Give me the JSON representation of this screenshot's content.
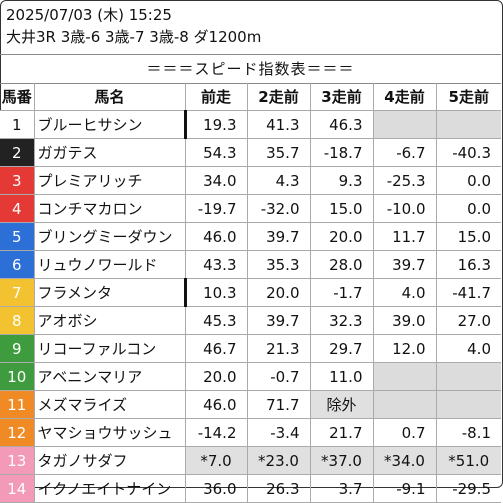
{
  "header": {
    "date_line": "2025/07/03 (木) 15:25",
    "race_line": "大井3R 3歳-6 3歳-7 3歳-8 ダ1200m"
  },
  "title": "＝＝＝スピード指数表＝＝＝",
  "columns": [
    "馬番",
    "馬名",
    "前走",
    "2走前",
    "3走前",
    "4走前",
    "5走前"
  ],
  "colors": {
    "gate1": "#ffffff",
    "gate2": "#222222",
    "gate3": "#e53935",
    "gate4": "#2c6fd6",
    "gate5": "#f2c230",
    "gate6": "#3e9b3e",
    "gate7": "#f08a24",
    "gate8": "#f29ab8"
  },
  "rows": [
    {
      "num": "1",
      "name": "ブルーヒサシン",
      "v": [
        "19.3",
        "41.3",
        "46.3",
        "",
        ""
      ],
      "bg": "#ffffff",
      "fg": "#111111",
      "mark": true
    },
    {
      "num": "2",
      "name": "ガガテス",
      "v": [
        "54.3",
        "35.7",
        "-18.7",
        "-6.7",
        "-40.3"
      ],
      "bg": "#222222",
      "fg": "#ffffff",
      "mark": false
    },
    {
      "num": "3",
      "name": "プレミアリッチ",
      "v": [
        "34.0",
        "4.3",
        "9.3",
        "-25.3",
        "0.0"
      ],
      "bg": "#e53935",
      "fg": "#ffffff",
      "mark": false
    },
    {
      "num": "4",
      "name": "コンチマカロン",
      "v": [
        "-19.7",
        "-32.0",
        "15.0",
        "-10.0",
        "0.0"
      ],
      "bg": "#e53935",
      "fg": "#ffffff",
      "mark": false
    },
    {
      "num": "5",
      "name": "ブリングミーダウン",
      "v": [
        "46.0",
        "39.7",
        "20.0",
        "11.7",
        "15.0"
      ],
      "bg": "#2c6fd6",
      "fg": "#ffffff",
      "mark": false
    },
    {
      "num": "6",
      "name": "リュウノワールド",
      "v": [
        "43.3",
        "35.3",
        "28.0",
        "39.7",
        "16.3"
      ],
      "bg": "#2c6fd6",
      "fg": "#ffffff",
      "mark": false
    },
    {
      "num": "7",
      "name": "フラメンタ",
      "v": [
        "10.3",
        "20.0",
        "-1.7",
        "4.0",
        "-41.7"
      ],
      "bg": "#f2c230",
      "fg": "#ffffff",
      "mark": true
    },
    {
      "num": "8",
      "name": "アオボシ",
      "v": [
        "45.3",
        "39.7",
        "32.3",
        "39.0",
        "27.0"
      ],
      "bg": "#f2c230",
      "fg": "#ffffff",
      "mark": false
    },
    {
      "num": "9",
      "name": "リコーファルコン",
      "v": [
        "46.7",
        "21.3",
        "29.7",
        "12.0",
        "4.0"
      ],
      "bg": "#3e9b3e",
      "fg": "#ffffff",
      "mark": false
    },
    {
      "num": "10",
      "name": "アベニンマリア",
      "v": [
        "20.0",
        "-0.7",
        "11.0",
        "",
        ""
      ],
      "bg": "#3e9b3e",
      "fg": "#ffffff",
      "mark": false
    },
    {
      "num": "11",
      "name": "メズマライズ",
      "v": [
        "46.0",
        "71.7",
        "除外",
        "",
        ""
      ],
      "bg": "#f08a24",
      "fg": "#ffffff",
      "mark": false,
      "shade3": true
    },
    {
      "num": "12",
      "name": "ヤマショウサッシュ",
      "v": [
        "-14.2",
        "-3.4",
        "21.7",
        "0.7",
        "-8.1"
      ],
      "bg": "#f08a24",
      "fg": "#ffffff",
      "mark": false
    },
    {
      "num": "13",
      "name": "タガノサダフ",
      "v": [
        "*7.0",
        "*23.0",
        "*37.0",
        "*34.0",
        "*51.0"
      ],
      "bg": "#f29ab8",
      "fg": "#ffffff",
      "mark": false,
      "shadeAll": true
    },
    {
      "num": "14",
      "name": "イクノエイトナイン",
      "v": [
        "36.0",
        "26.3",
        "3.7",
        "-9.1",
        "-29.5"
      ],
      "bg": "#f29ab8",
      "fg": "#ffffff",
      "mark": false
    }
  ]
}
